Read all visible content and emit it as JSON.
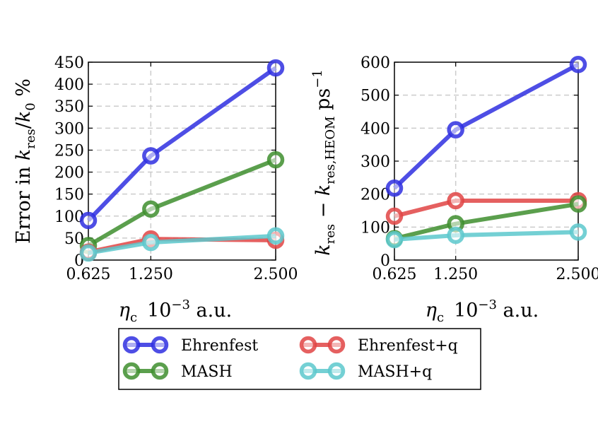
{
  "figure": {
    "legend": [
      {
        "label": "Ehrenfest",
        "color": "#2f2fe0"
      },
      {
        "label": "Ehrenfest+q",
        "color": "#e04444"
      },
      {
        "label": "MASH",
        "color": "#3e8e2e"
      },
      {
        "label": "MASH+q",
        "color": "#5cc8cc"
      }
    ]
  },
  "chart_data": [
    {
      "type": "line",
      "ylabel": "Error in k_res / k_0 %",
      "xlabel": "η_c   10^-3 a.u.",
      "x": [
        0.625,
        1.25,
        2.5
      ],
      "x_ticks": [
        "0.625",
        "1.250",
        "2.500"
      ],
      "xlim": [
        0.625,
        2.5
      ],
      "ylim": [
        0,
        450
      ],
      "y_ticks": [
        "0",
        "50",
        "100",
        "150",
        "200",
        "250",
        "300",
        "350",
        "400",
        "450"
      ],
      "grid": true,
      "series": [
        {
          "name": "Ehrenfest",
          "values": [
            90,
            237,
            437
          ],
          "color": "#2f2fe0"
        },
        {
          "name": "MASH",
          "values": [
            33,
            116,
            228
          ],
          "color": "#3e8e2e"
        },
        {
          "name": "Ehrenfest+q",
          "values": [
            18,
            48,
            45
          ],
          "color": "#e04444"
        },
        {
          "name": "MASH+q",
          "values": [
            16,
            40,
            55
          ],
          "color": "#5cc8cc"
        }
      ]
    },
    {
      "type": "line",
      "ylabel": "k_res − k_res,HEOM ps^-1",
      "xlabel": "η_c   10^-3 a.u.",
      "x": [
        0.625,
        1.25,
        2.5
      ],
      "x_ticks": [
        "0.625",
        "1.250",
        "2.500"
      ],
      "xlim": [
        0.625,
        2.5
      ],
      "ylim": [
        0,
        600
      ],
      "y_ticks": [
        "0",
        "100",
        "200",
        "300",
        "400",
        "500",
        "600"
      ],
      "grid": true,
      "series": [
        {
          "name": "Ehrenfest",
          "values": [
            218,
            395,
            593
          ],
          "color": "#2f2fe0"
        },
        {
          "name": "Ehrenfest+q",
          "values": [
            133,
            180,
            180
          ],
          "color": "#e04444"
        },
        {
          "name": "MASH",
          "values": [
            65,
            110,
            170
          ],
          "color": "#3e8e2e"
        },
        {
          "name": "MASH+q",
          "values": [
            62,
            75,
            85
          ],
          "color": "#5cc8cc"
        }
      ]
    }
  ]
}
